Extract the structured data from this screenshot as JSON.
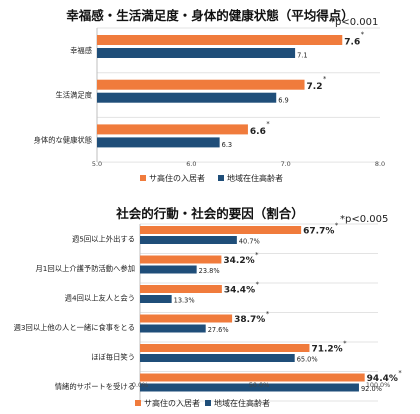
{
  "chart_data": [
    {
      "type": "bar",
      "orientation": "horizontal",
      "title": "幸福感・生活満足度・身体的健康状態（平均得点）",
      "note": "*p<0.001",
      "categories": [
        "幸福感",
        "生活満足度",
        "身体的な健康状態"
      ],
      "series": [
        {
          "name": "サ高住の入居者",
          "color": "#f07b3c",
          "values": [
            7.6,
            7.2,
            6.6
          ],
          "labels": [
            "7.6",
            "7.2",
            "6.6"
          ]
        },
        {
          "name": "地域在住高齢者",
          "color": "#1f4e79",
          "values": [
            7.1,
            6.9,
            6.3
          ],
          "labels": [
            "7.1",
            "6.9",
            "6.3"
          ]
        }
      ],
      "significance_marker": "*",
      "xlim": [
        5,
        8
      ],
      "ticks": [
        5,
        6,
        7,
        8
      ],
      "tick_labels": [
        "5.0",
        "6.0",
        "7.0",
        "8.0"
      ],
      "grid": false,
      "legend_position": "bottom"
    },
    {
      "type": "bar",
      "orientation": "horizontal",
      "title": "社会的行動・社会的要因（割合）",
      "note": "*p<0.005",
      "categories": [
        "週5回以上外出する",
        "月1回以上介護予防活動へ参加",
        "週4回以上友人と会う",
        "週3回以上他の人と一緒に食事をとる",
        "ほぼ毎日笑う",
        "情緒的サポートを受ける"
      ],
      "series": [
        {
          "name": "サ高住の入居者",
          "color": "#f07b3c",
          "values": [
            67.7,
            34.2,
            34.4,
            38.7,
            71.2,
            94.4
          ],
          "labels": [
            "67.7%",
            "34.2%",
            "34.4%",
            "38.7%",
            "71.2%",
            "94.4%"
          ]
        },
        {
          "name": "地域在住高齢者",
          "color": "#1f4e79",
          "values": [
            40.7,
            23.8,
            13.3,
            27.6,
            65.0,
            92.0
          ],
          "labels": [
            "40.7%",
            "23.8%",
            "13.3%",
            "27.6%",
            "65.0%",
            "92.0%"
          ]
        }
      ],
      "significance_marker": "*",
      "xlim": [
        0,
        100
      ],
      "ticks": [
        0,
        50,
        100
      ],
      "tick_labels": [
        "0.0%",
        "50.0%",
        "100.0%"
      ],
      "grid": false,
      "legend_position": "bottom"
    }
  ]
}
